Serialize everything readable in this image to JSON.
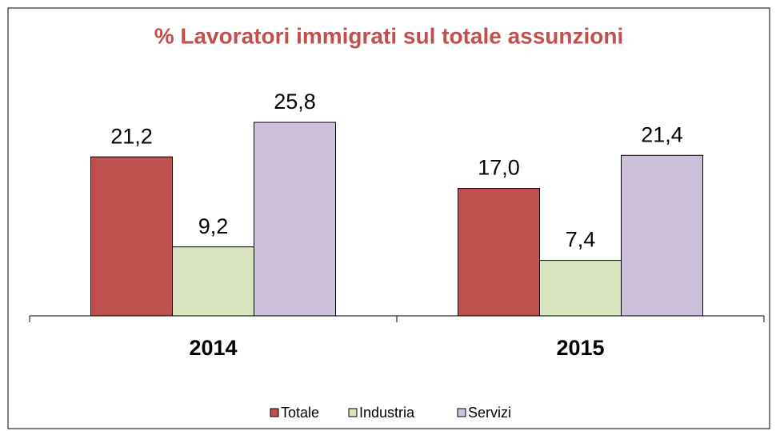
{
  "chart_data": {
    "type": "bar",
    "title": "% Lavoratori immigrati sul totale assunzioni",
    "categories": [
      "2014",
      "2015"
    ],
    "series": [
      {
        "name": "Totale",
        "color": "#c0504d",
        "values": [
          21.2,
          17.0
        ],
        "value_labels": [
          "21,2",
          "17,0"
        ]
      },
      {
        "name": "Industria",
        "color": "#d7e4bd",
        "values": [
          9.2,
          7.4
        ],
        "value_labels": [
          "9,2",
          "7,4"
        ]
      },
      {
        "name": "Servizi",
        "color": "#ccc0da",
        "values": [
          25.8,
          21.4
        ],
        "value_labels": [
          "25,8",
          "21,4"
        ]
      }
    ],
    "legend": "bottom"
  }
}
